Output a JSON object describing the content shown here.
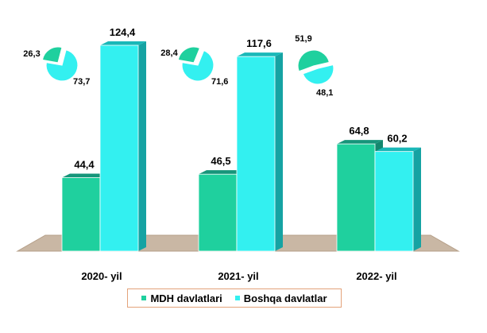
{
  "chart_data": [
    {
      "type": "bar",
      "categories": [
        "2020- yil",
        "2021- yil",
        "2022- yil"
      ],
      "series": [
        {
          "name": "MDH davlatlari",
          "values": [
            44.4,
            46.5,
            64.8
          ],
          "labels": [
            "44,4",
            "46,5",
            "64,8"
          ]
        },
        {
          "name": "Boshqa davlatlar",
          "values": [
            124.4,
            117.6,
            60.2
          ],
          "labels": [
            "124,4",
            "117,6",
            "60,2"
          ]
        }
      ],
      "ylim": [
        0,
        135
      ],
      "grid": false,
      "legend_position": "bottom"
    },
    {
      "type": "pie",
      "category": "2020- yil",
      "values": [
        26.3,
        73.7
      ],
      "labels": [
        "26,3",
        "73,7"
      ]
    },
    {
      "type": "pie",
      "category": "2021- yil",
      "values": [
        28.4,
        71.6
      ],
      "labels": [
        "28,4",
        "71,6"
      ]
    },
    {
      "type": "pie",
      "category": "2022- yil",
      "values": [
        51.9,
        48.1
      ],
      "labels": [
        "51,9",
        "48,1"
      ]
    }
  ],
  "colors": {
    "mdh": "#1fd09e",
    "mdh_top": "#16957a",
    "mdh_side": "#13876e",
    "boshqa": "#33f0f0",
    "boshqa_top": "#19b8b8",
    "boshqa_side": "#15a3a3",
    "floor": "#c9b7a4",
    "floor_edge": "#b59f88",
    "legend_border": "#e3a27a"
  },
  "legend": {
    "mdh": "MDH davlatlari",
    "boshqa": "Boshqa davlatlar"
  }
}
